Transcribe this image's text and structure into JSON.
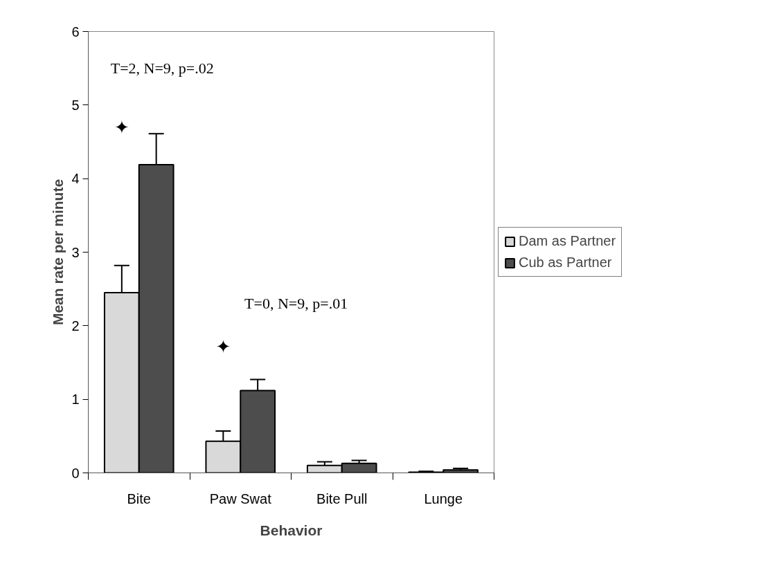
{
  "chart_data": {
    "type": "bar",
    "xlabel": "Behavior",
    "ylabel": "Mean rate per minute",
    "categories": [
      "Bite",
      "Paw Swat",
      "Bite Pull",
      "Lunge"
    ],
    "series": [
      {
        "name": "Dam as Partner",
        "color": "#d9d9d9",
        "values": [
          2.45,
          0.43,
          0.1,
          0.01
        ],
        "errors": [
          0.37,
          0.14,
          0.05,
          0.01
        ]
      },
      {
        "name": "Cub as Partner",
        "color": "#4d4d4d",
        "values": [
          4.19,
          1.12,
          0.13,
          0.04
        ],
        "errors": [
          0.42,
          0.15,
          0.04,
          0.02
        ]
      }
    ],
    "ylim": [
      0,
      6
    ],
    "yticks": [
      0,
      1,
      2,
      3,
      4,
      5,
      6
    ],
    "grid": false,
    "legend": "right",
    "annotations": [
      "T=2, N=9, p=.02",
      "✦",
      "T=0, N=9, p=.01",
      "✦"
    ]
  }
}
